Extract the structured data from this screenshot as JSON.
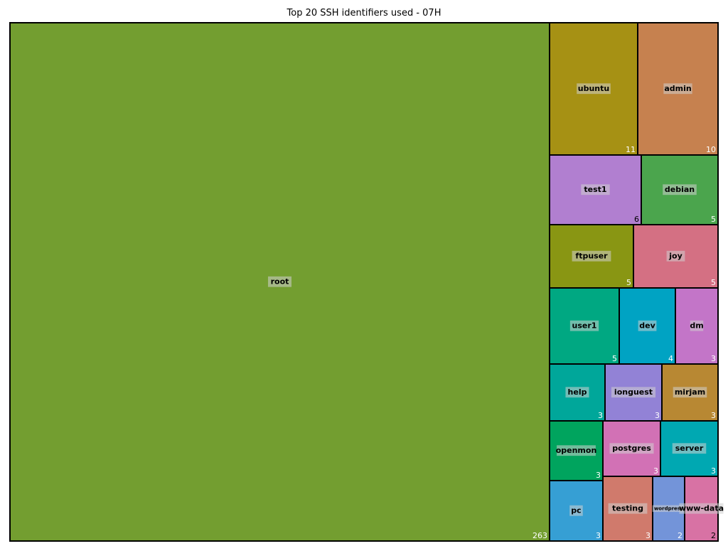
{
  "chart_data": {
    "type": "treemap",
    "title": "Top 20 SSH identifiers used - 07H",
    "items": [
      {
        "label": "root",
        "value": 263,
        "color": "#739e30"
      },
      {
        "label": "ubuntu",
        "value": 11,
        "color": "#a69114"
      },
      {
        "label": "admin",
        "value": 10,
        "color": "#c6814f"
      },
      {
        "label": "test1",
        "value": 6,
        "color": "#b17fd0"
      },
      {
        "label": "debian",
        "value": 5,
        "color": "#4ba54d"
      },
      {
        "label": "ftpuser",
        "value": 5,
        "color": "#899613"
      },
      {
        "label": "joy",
        "value": 5,
        "color": "#d47083"
      },
      {
        "label": "user1",
        "value": 5,
        "color": "#00a882"
      },
      {
        "label": "dev",
        "value": 4,
        "color": "#00a3c3"
      },
      {
        "label": "dm",
        "value": 3,
        "color": "#c375c8"
      },
      {
        "label": "help",
        "value": 3,
        "color": "#00a79a"
      },
      {
        "label": "ionguest",
        "value": 3,
        "color": "#9282d6"
      },
      {
        "label": "mirjam",
        "value": 3,
        "color": "#b88833"
      },
      {
        "label": "openmon",
        "value": 3,
        "color": "#00a45e"
      },
      {
        "label": "postgres",
        "value": 3,
        "color": "#d271b5"
      },
      {
        "label": "server",
        "value": 3,
        "color": "#00a8b2"
      },
      {
        "label": "pc",
        "value": 3,
        "color": "#369fd4"
      },
      {
        "label": "testing",
        "value": 3,
        "color": "#d07a6c"
      },
      {
        "label": "wordpress",
        "value": 2,
        "color": "#7394d9"
      },
      {
        "label": "www-data",
        "value": 2,
        "color": "#d872a4"
      }
    ]
  }
}
